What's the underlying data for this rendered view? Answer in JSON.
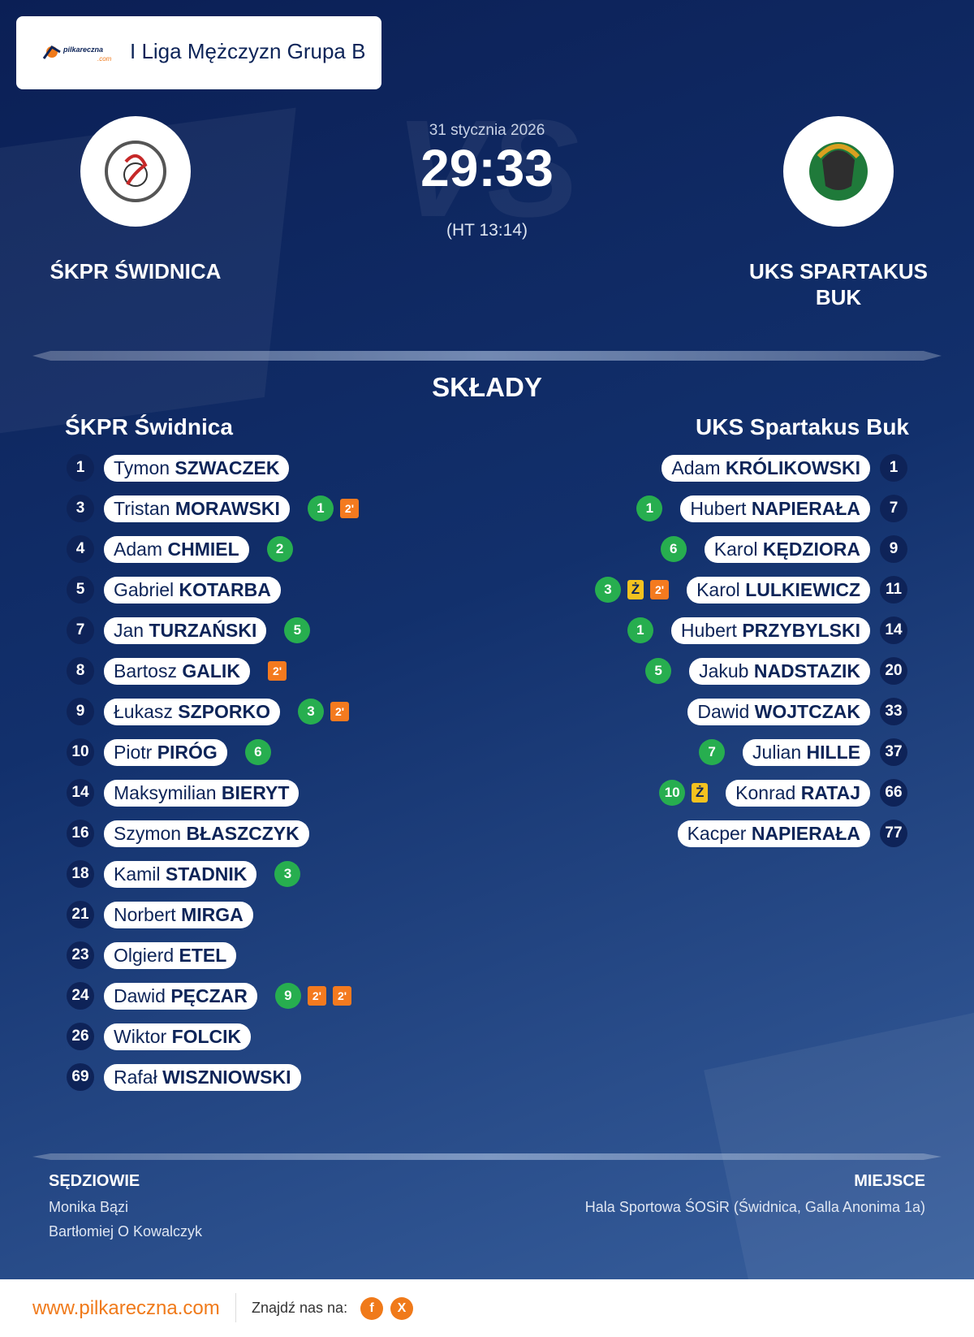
{
  "header": {
    "logo_text": [
      "pilkareczna",
      ".com"
    ],
    "title": "I Liga Mężczyzn Grupa B"
  },
  "match": {
    "watermark": "VS",
    "date": "31 stycznia 2026",
    "score": "29:33",
    "half_time": "(HT 13:14)",
    "home": "ŚKPR ŚWIDNICA",
    "away": "UKS SPARTAKUS BUK"
  },
  "lineups": {
    "title": "SKŁADY",
    "home": {
      "team": "ŚKPR Świdnica",
      "players": [
        {
          "number": 1,
          "first": "Tymon",
          "last": "SZWACZEK",
          "goals": null,
          "cards": []
        },
        {
          "number": 3,
          "first": "Tristan",
          "last": "MORAWSKI",
          "goals": 1,
          "cards": [
            "2'"
          ]
        },
        {
          "number": 4,
          "first": "Adam",
          "last": "CHMIEL",
          "goals": 2,
          "cards": []
        },
        {
          "number": 5,
          "first": "Gabriel",
          "last": "KOTARBA",
          "goals": null,
          "cards": []
        },
        {
          "number": 7,
          "first": "Jan",
          "last": "TURZAŃSKI",
          "goals": 5,
          "cards": []
        },
        {
          "number": 8,
          "first": "Bartosz",
          "last": "GALIK",
          "goals": null,
          "cards": [
            "2'"
          ]
        },
        {
          "number": 9,
          "first": "Łukasz",
          "last": "SZPORKO",
          "goals": 3,
          "cards": [
            "2'"
          ]
        },
        {
          "number": 10,
          "first": "Piotr",
          "last": "PIRÓG",
          "goals": 6,
          "cards": []
        },
        {
          "number": 14,
          "first": "Maksymilian",
          "last": "BIERYT",
          "goals": null,
          "cards": []
        },
        {
          "number": 16,
          "first": "Szymon",
          "last": "BŁASZCZYK",
          "goals": null,
          "cards": []
        },
        {
          "number": 18,
          "first": "Kamil",
          "last": "STADNIK",
          "goals": 3,
          "cards": []
        },
        {
          "number": 21,
          "first": "Norbert",
          "last": "MIRGA",
          "goals": null,
          "cards": []
        },
        {
          "number": 23,
          "first": "Olgierd",
          "last": "ETEL",
          "goals": null,
          "cards": []
        },
        {
          "number": 24,
          "first": "Dawid",
          "last": "PĘCZAR",
          "goals": 9,
          "cards": [
            "2'",
            "2'"
          ]
        },
        {
          "number": 26,
          "first": "Wiktor",
          "last": "FOLCIK",
          "goals": null,
          "cards": []
        },
        {
          "number": 69,
          "first": "Rafał",
          "last": "WISZNIOWSKI",
          "goals": null,
          "cards": []
        }
      ]
    },
    "away": {
      "team": "UKS Spartakus Buk",
      "players": [
        {
          "number": 1,
          "first": "Adam",
          "last": "KRÓLIKOWSKI",
          "goals": null,
          "cards": []
        },
        {
          "number": 7,
          "first": "Hubert",
          "last": "NAPIERAŁA",
          "goals": 1,
          "cards": []
        },
        {
          "number": 9,
          "first": "Karol",
          "last": "KĘDZIORA",
          "goals": 6,
          "cards": []
        },
        {
          "number": 11,
          "first": "Karol",
          "last": "LULKIEWICZ",
          "goals": 3,
          "cards": [
            "Ż",
            "2'"
          ]
        },
        {
          "number": 14,
          "first": "Hubert",
          "last": "PRZYBYLSKI",
          "goals": 1,
          "cards": []
        },
        {
          "number": 20,
          "first": "Jakub",
          "last": "NADSTAZIK",
          "goals": 5,
          "cards": []
        },
        {
          "number": 33,
          "first": "Dawid",
          "last": "WOJTCZAK",
          "goals": null,
          "cards": []
        },
        {
          "number": 37,
          "first": "Julian",
          "last": "HILLE",
          "goals": 7,
          "cards": []
        },
        {
          "number": 66,
          "first": "Konrad",
          "last": "RATAJ",
          "goals": 10,
          "cards": [
            "Ż"
          ]
        },
        {
          "number": 77,
          "first": "Kacper",
          "last": "NAPIERAŁA",
          "goals": null,
          "cards": []
        }
      ]
    }
  },
  "officials": {
    "title": "SĘDZIOWIE",
    "names": [
      "Monika Bązi",
      "Bartłomiej O Kowalczyk"
    ]
  },
  "venue": {
    "title": "MIEJSCE",
    "name": "Hala Sportowa ŚOSiR (Świdnica, Galla Anonima 1a)"
  },
  "footer": {
    "url": "www.pilkareczna.com",
    "find_us": "Znajdź nas na:",
    "social": [
      "f",
      "X"
    ]
  }
}
